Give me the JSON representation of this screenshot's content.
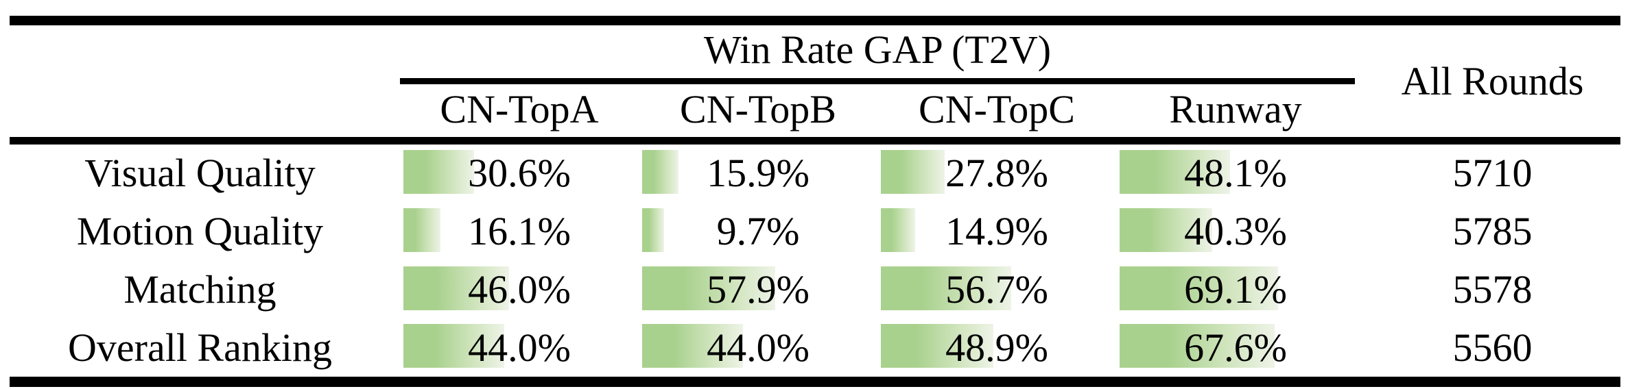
{
  "table": {
    "group_header": "Win Rate GAP (T2V)",
    "all_rounds_header": "All Rounds",
    "columns": [
      "CN-TopA",
      "CN-TopB",
      "CN-TopC",
      "Runway"
    ],
    "rows": [
      {
        "label": "Visual Quality",
        "values": [
          30.6,
          15.9,
          27.8,
          48.1
        ],
        "labels": [
          "30.6%",
          "15.9%",
          "27.8%",
          "48.1%"
        ],
        "all_rounds": "5710"
      },
      {
        "label": "Motion Quality",
        "values": [
          16.1,
          9.7,
          14.9,
          40.3
        ],
        "labels": [
          "16.1%",
          "9.7%",
          "14.9%",
          "40.3%"
        ],
        "all_rounds": "5785"
      },
      {
        "label": "Matching",
        "values": [
          46.0,
          57.9,
          56.7,
          69.1
        ],
        "labels": [
          "46.0%",
          "57.9%",
          "56.7%",
          "69.1%"
        ],
        "all_rounds": "5578"
      },
      {
        "label": "Overall Ranking",
        "values": [
          44.0,
          44.0,
          48.9,
          67.6
        ],
        "labels": [
          "44.0%",
          "44.0%",
          "48.9%",
          "67.6%"
        ],
        "all_rounds": "5560"
      }
    ],
    "colors": {
      "bar_green": "#a9d18e",
      "bar_mid": "#cfe4bc",
      "bar_fade": "#eef3e7",
      "rule_black": "#000000"
    }
  },
  "chart_data": {
    "type": "table",
    "title": "Win Rate GAP (T2V)",
    "columns": [
      "CN-TopA",
      "CN-TopB",
      "CN-TopC",
      "Runway",
      "All Rounds"
    ],
    "row_labels": [
      "Visual Quality",
      "Motion Quality",
      "Matching",
      "Overall Ranking"
    ],
    "win_rate_gap_percent": [
      [
        30.6,
        15.9,
        27.8,
        48.1
      ],
      [
        16.1,
        9.7,
        14.9,
        40.3
      ],
      [
        46.0,
        57.9,
        56.7,
        69.1
      ],
      [
        44.0,
        44.0,
        48.9,
        67.6
      ]
    ],
    "all_rounds": [
      5710,
      5785,
      5578,
      5560
    ],
    "bar_scale": "cell bars proportional to percentage, green gradient fading right"
  }
}
